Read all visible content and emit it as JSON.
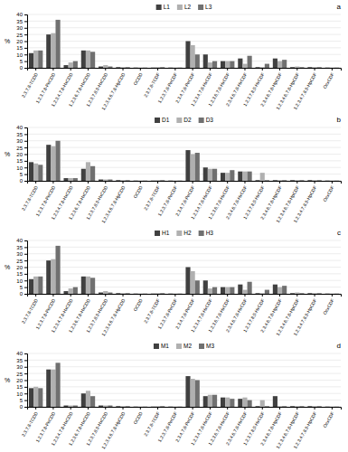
{
  "chart_data": [
    {
      "type": "bar",
      "title": "a",
      "y_label": "%",
      "categories": [
        "2,3,7,8-TCDD",
        "1,2,3,7,8-PeCDD",
        "1,2,3,4,7,8-HxCDD",
        "1,2,3,6,7,8-HxCDD",
        "1,2,3,7,8,9-HxCDD",
        "1,2,3,4,6,7,8-HpCDD",
        "OCDD",
        "2,3,7,8-TCDF",
        "1,2,3,7,8-PeCDF",
        "2,3,4,7,8-PeCDF",
        "1,2,3,4,7,8-HxCDF",
        "1,2,3,6,7,8-HxCDF",
        "2,3,4,6,7,8-HxCDF",
        "1,2,3,7,8,9-HxCDF",
        "2,3,4,6,7,8-HpCDF",
        "1,2,3,4,6,7,8-HpCDF",
        "1,2,3,4,7,8,9-HpCDF",
        "OcxCDF"
      ],
      "series": [
        {
          "name": "L1",
          "color": "#404040",
          "values": [
            11,
            25,
            2,
            13,
            1,
            0.5,
            0.2,
            0.2,
            0.2,
            20,
            10,
            5,
            7,
            0.5,
            7,
            0.5,
            0.5,
            0.2
          ]
        },
        {
          "name": "L2",
          "color": "#b0b0b0",
          "values": [
            13,
            26,
            4,
            13,
            2,
            0.5,
            0.2,
            0.5,
            0.2,
            17,
            4,
            5,
            3,
            0.5,
            5,
            1,
            0.5,
            0.2
          ]
        },
        {
          "name": "L3",
          "color": "#707070",
          "values": [
            13,
            36,
            5,
            12,
            1,
            0.5,
            0.2,
            0.5,
            0.2,
            10,
            5,
            5,
            9,
            3,
            6,
            0.5,
            0.5,
            0.2
          ]
        }
      ],
      "ylim": [
        0,
        40
      ],
      "yticks": [
        0,
        5,
        10,
        15,
        20,
        25,
        30,
        35,
        40
      ],
      "grid": true,
      "legend": "top"
    },
    {
      "type": "bar",
      "title": "b",
      "y_label": "%",
      "categories": [
        "2,3,7,8-TCDD",
        "1,2,3,7,8-PeCDD",
        "1,2,3,4,7,8-HxCDD",
        "1,2,3,6,7,8-HxCDD",
        "1,2,3,7,8,9-HxCDD",
        "1,2,3,4,6,7,8-HpCDD",
        "OCDD",
        "2,3,7,8-TCDF",
        "1,2,3,7,8-PeCDF",
        "2,3,4,7,8-PeCDF",
        "1,2,3,4,7,8-HxCDF",
        "1,2,3,6,7,8-HxCDF",
        "2,3,4,6,7,8-HxCDF",
        "1,2,3,7,8,9-HxCDF",
        "2,3,4,6,7,8-HpCDF",
        "1,2,3,4,6,7,8-HpCDF",
        "1,2,3,4,7,8,9-HpCDF",
        "OcxCDF"
      ],
      "series": [
        {
          "name": "D1",
          "color": "#404040",
          "values": [
            14,
            27,
            2,
            9,
            1,
            0.5,
            0.2,
            0.2,
            0.2,
            23,
            10,
            6,
            7,
            0.5,
            0.5,
            0.5,
            0.5,
            0.2
          ]
        },
        {
          "name": "D2",
          "color": "#b0b0b0",
          "values": [
            13,
            26,
            2,
            14,
            1,
            0.5,
            0.2,
            0.5,
            0.2,
            20,
            9,
            6,
            7,
            6,
            0.5,
            0.5,
            0.5,
            0.2
          ]
        },
        {
          "name": "D3",
          "color": "#707070",
          "values": [
            12,
            30,
            2,
            11,
            1,
            0.5,
            0.2,
            0.5,
            0.2,
            21,
            9,
            8,
            7,
            0.5,
            0.5,
            0.5,
            0.5,
            0.2
          ]
        }
      ],
      "ylim": [
        0,
        40
      ],
      "yticks": [
        0,
        5,
        10,
        15,
        20,
        25,
        30,
        35,
        40
      ],
      "grid": true,
      "legend": "top"
    },
    {
      "type": "bar",
      "title": "c",
      "y_label": "%",
      "categories": [
        "2,3,7,8-TCDD",
        "1,2,3,7,8-PeCDD",
        "1,2,3,4,7,8-HxCDD",
        "1,2,3,6,7,8-HxCDD",
        "1,2,3,7,8,9-HxCDD",
        "1,2,3,4,6,7,8-HpCDD",
        "OCDD",
        "2,3,7,8-TCDF",
        "1,2,3,7,8-PeCDF",
        "2,3,4,7,8-PeCDF",
        "1,2,3,4,7,8-HxCDF",
        "1,2,3,6,7,8-HxCDF",
        "2,3,4,6,7,8-HxCDF",
        "1,2,3,7,8,9-HxCDF",
        "2,3,4,6,7,8-HpCDF",
        "1,2,3,4,6,7,8-HpCDF",
        "1,2,3,4,7,8,9-HpCDF",
        "OcxCDF"
      ],
      "series": [
        {
          "name": "H1",
          "color": "#404040",
          "values": [
            11,
            25,
            2,
            13,
            1,
            0.5,
            0.2,
            0.2,
            0.2,
            20,
            10,
            5,
            7,
            0.5,
            7,
            0.5,
            0.5,
            0.2
          ]
        },
        {
          "name": "H2",
          "color": "#b0b0b0",
          "values": [
            13,
            26,
            4,
            13,
            2,
            0.5,
            0.2,
            0.5,
            0.2,
            17,
            4,
            5,
            3,
            0.5,
            5,
            1,
            0.5,
            0.2
          ]
        },
        {
          "name": "H3",
          "color": "#707070",
          "values": [
            13,
            36,
            5,
            12,
            1,
            0.5,
            0.2,
            0.5,
            0.2,
            10,
            5,
            5,
            9,
            3,
            6,
            0.5,
            0.5,
            0.2
          ]
        }
      ],
      "ylim": [
        0,
        40
      ],
      "yticks": [
        0,
        5,
        10,
        15,
        20,
        25,
        30,
        35,
        40
      ],
      "grid": true,
      "legend": "top"
    },
    {
      "type": "bar",
      "title": "d",
      "y_label": "%",
      "categories": [
        "2,3,7,8-TCDD",
        "1,2,3,7,8-PeCDD",
        "1,2,3,4,7,8-HxCDD",
        "1,2,3,6,7,8-HxCDD",
        "1,2,3,7,8,9-HxCDD",
        "1,2,3,4,6,7,8-HpCDD",
        "OCDD",
        "2,3,7,8-TCDF",
        "1,2,3,7,8-PeCDF",
        "2,3,4,7,8-PeCDF",
        "1,2,3,4,7,8-HxCDF",
        "1,2,3,6,7,8-HxCDF",
        "2,3,4,6,7,8-HxCDF",
        "1,2,3,7,8,9-HxCDF",
        "2,3,4,6,7,8-HpCDF",
        "1,2,3,4,6,7,8-HpCDF",
        "1,2,3,4,7,8,9-HpCDF",
        "OcxCDF"
      ],
      "series": [
        {
          "name": "M1",
          "color": "#404040",
          "values": [
            14,
            28,
            1,
            10,
            1,
            0.5,
            0.2,
            0.2,
            0.2,
            23,
            8,
            7,
            6,
            0.5,
            8,
            0.5,
            0.5,
            0.2
          ]
        },
        {
          "name": "M2",
          "color": "#b0b0b0",
          "values": [
            15,
            28,
            1,
            12,
            1,
            0.5,
            0.2,
            0.5,
            0.2,
            21,
            9,
            7,
            7,
            5,
            0.5,
            0.5,
            0.5,
            0.2
          ]
        },
        {
          "name": "M3",
          "color": "#707070",
          "values": [
            14,
            33,
            1,
            8,
            1,
            0.5,
            0.2,
            0.5,
            0.2,
            20,
            9,
            6,
            5,
            0.5,
            0.5,
            0.5,
            0.5,
            0.2
          ]
        }
      ],
      "ylim": [
        0,
        40
      ],
      "yticks": [
        0,
        5,
        10,
        15,
        20,
        25,
        30,
        35,
        40
      ],
      "grid": true,
      "legend": "top"
    }
  ]
}
